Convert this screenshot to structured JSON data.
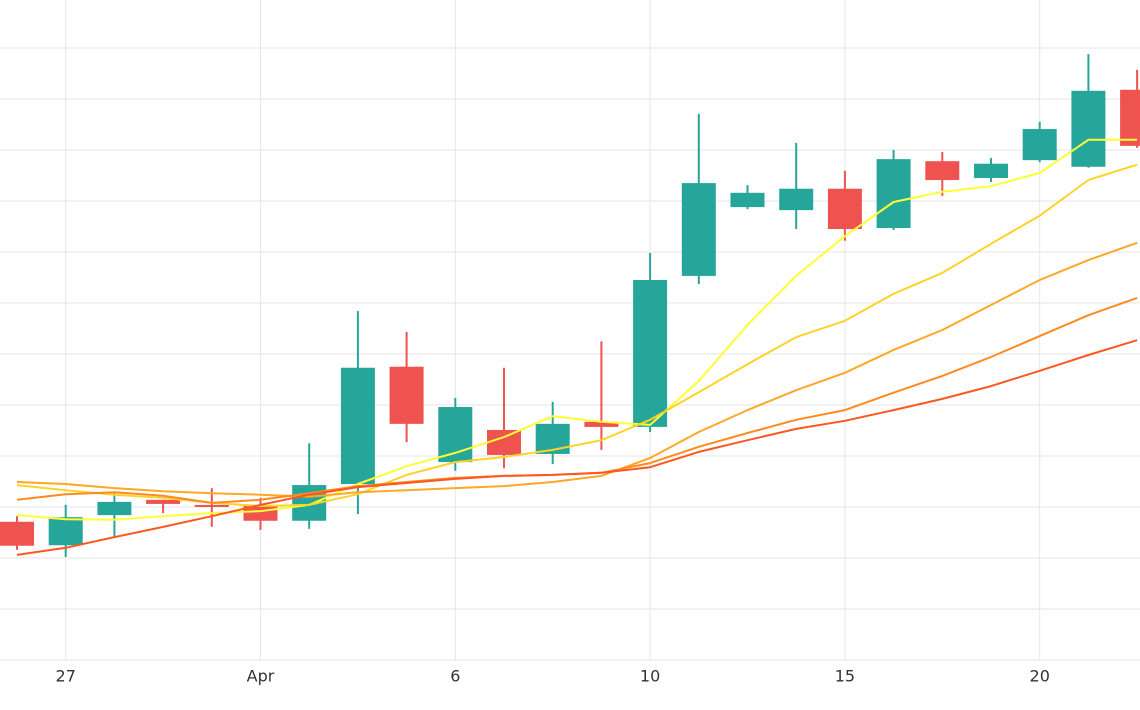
{
  "chart_data": {
    "type": "candlestick",
    "categories": [
      null,
      "27",
      null,
      null,
      null,
      "Apr",
      null,
      null,
      null,
      "6",
      null,
      null,
      null,
      "10",
      null,
      null,
      null,
      "15",
      null,
      null,
      null,
      "20",
      null,
      null
    ],
    "open": [
      2.71,
      2.25,
      2.84,
      3.14,
      3.04,
      3.02,
      2.73,
      3.45,
      5.75,
      3.88,
      4.51,
      4.04,
      4.67,
      4.57,
      7.53,
      8.88,
      8.82,
      9.24,
      8.47,
      9.78,
      9.45,
      9.8,
      9.67,
      11.18
    ],
    "high": [
      2.82,
      3.04,
      3.29,
      3.14,
      3.37,
      3.18,
      4.25,
      6.84,
      6.43,
      5.14,
      5.73,
      5.06,
      6.25,
      7.98,
      10.71,
      9.31,
      10.14,
      9.59,
      10.0,
      9.96,
      9.84,
      10.55,
      11.88,
      11.57
    ],
    "low": [
      2.16,
      2.02,
      2.39,
      2.88,
      2.61,
      2.55,
      2.57,
      2.86,
      4.27,
      3.71,
      3.76,
      3.84,
      4.12,
      4.47,
      7.37,
      8.84,
      8.45,
      8.22,
      8.43,
      9.1,
      9.37,
      9.76,
      9.65,
      10.04
    ],
    "close": [
      2.24,
      2.8,
      3.1,
      3.06,
      3.0,
      2.73,
      3.43,
      5.73,
      4.63,
      4.96,
      4.02,
      4.63,
      4.57,
      7.45,
      9.35,
      9.16,
      9.24,
      8.45,
      9.82,
      9.41,
      9.73,
      10.41,
      11.16,
      10.08
    ],
    "increasing_color": "#26a69a",
    "decreasing_color": "#ef5350",
    "series": [
      {
        "color": "#ffff33",
        "values": [
          2.84,
          2.76,
          2.75,
          2.82,
          2.88,
          2.92,
          3.04,
          3.45,
          3.8,
          4.06,
          4.37,
          4.78,
          4.67,
          4.61,
          5.47,
          6.57,
          7.53,
          8.31,
          8.98,
          9.18,
          9.29,
          9.55,
          10.2,
          10.2
        ]
      },
      {
        "color": "#fdd32a",
        "values": [
          3.43,
          3.33,
          3.24,
          3.18,
          3.08,
          3.02,
          3.04,
          3.25,
          3.63,
          3.88,
          3.98,
          4.12,
          4.31,
          4.71,
          5.25,
          5.8,
          6.33,
          6.65,
          7.18,
          7.59,
          8.16,
          8.71,
          9.41,
          9.71
        ]
      },
      {
        "color": "#ffa726",
        "values": [
          3.49,
          3.45,
          3.37,
          3.31,
          3.27,
          3.24,
          3.2,
          3.29,
          3.33,
          3.37,
          3.41,
          3.49,
          3.61,
          3.96,
          4.47,
          4.9,
          5.29,
          5.63,
          6.08,
          6.47,
          6.96,
          7.45,
          7.84,
          8.18
        ]
      },
      {
        "color": "#ff8a20",
        "values": [
          3.14,
          3.25,
          3.29,
          3.22,
          3.08,
          3.14,
          3.27,
          3.41,
          3.49,
          3.57,
          3.61,
          3.63,
          3.67,
          3.86,
          4.18,
          4.45,
          4.71,
          4.9,
          5.24,
          5.57,
          5.94,
          6.35,
          6.76,
          7.1
        ]
      },
      {
        "color": "#ff5722",
        "values": [
          2.06,
          2.2,
          2.41,
          2.61,
          2.82,
          3.04,
          3.24,
          3.39,
          3.47,
          3.55,
          3.61,
          3.63,
          3.67,
          3.78,
          4.08,
          4.31,
          4.53,
          4.69,
          4.9,
          5.12,
          5.37,
          5.67,
          5.98,
          6.27
        ]
      }
    ],
    "ylim": [
      0,
      12.94
    ],
    "yticks": [
      0,
      1,
      2,
      3,
      4,
      5,
      6,
      7,
      8,
      9,
      10,
      11,
      12
    ],
    "grid": true
  }
}
